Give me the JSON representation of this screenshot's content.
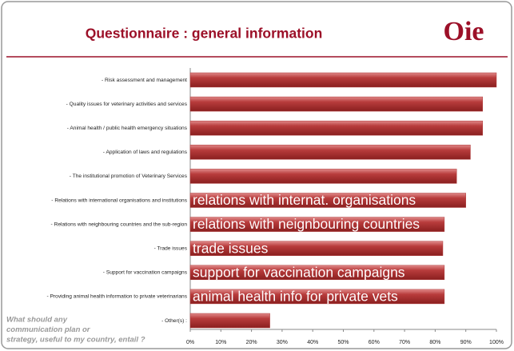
{
  "header": {
    "title": "Questionnaire : general information",
    "logo": "Oie"
  },
  "chart_data": {
    "type": "barh",
    "categories": [
      "- Risk assessment and management",
      "- Quality issues for veterinary activities and services",
      "- Animal health / public health emergency situations",
      "- Application of laws and regulations",
      "- The institutional promotion of Veterinary Services",
      "- Relations with international organisations and institutions",
      "- Relations with neighbouring countries and the sub-region",
      "- Trade issues",
      "- Support for vaccination campaigns",
      "- Providing animal health information to private veterinarians",
      "- Other(s) :"
    ],
    "values": [
      100,
      95.5,
      95.5,
      91.5,
      87,
      90,
      83,
      82.5,
      83,
      83,
      26
    ],
    "color": "#b03a3a",
    "xlim": [
      0,
      100
    ],
    "xticks": [
      {
        "value": 0,
        "label": "0%"
      },
      {
        "value": 10,
        "label": "10%"
      },
      {
        "value": 20,
        "label": "20%"
      },
      {
        "value": 30,
        "label": "30%"
      },
      {
        "value": 40,
        "label": "40%"
      },
      {
        "value": 50,
        "label": "50%"
      },
      {
        "value": 60,
        "label": "60%"
      },
      {
        "value": 70,
        "label": "70%"
      },
      {
        "value": 80,
        "label": "80%"
      },
      {
        "value": 90,
        "label": "90%"
      },
      {
        "value": 100,
        "label": "100%"
      }
    ],
    "annotations": [
      "relations with internat. organisations",
      "relations with neignbouring countries",
      "trade issues",
      "support for vaccination campaigns",
      "animal health info for private vets"
    ],
    "note": [
      "What should any",
      "communication plan or",
      "strategy, useful to my country, entail ?"
    ]
  }
}
